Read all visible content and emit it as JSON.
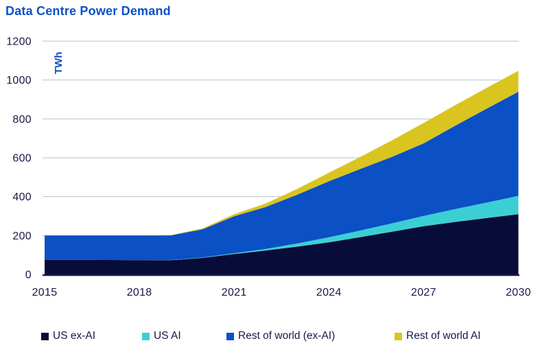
{
  "title": "Data Centre Power Demand",
  "colors": {
    "title": "#0C51C8",
    "axis_text": "#181849",
    "gridline": "#B9C3CE",
    "axis_line": "#1A1A4D",
    "background": "#FFFFFF"
  },
  "chart_data": {
    "type": "area",
    "stacked": true,
    "title": "Data Centre Power Demand",
    "xlabel": "",
    "ylabel": "TWh",
    "x": [
      2015,
      2016,
      2017,
      2018,
      2019,
      2020,
      2021,
      2022,
      2023,
      2024,
      2025,
      2026,
      2027,
      2028,
      2029,
      2030
    ],
    "x_tick_labels": [
      "2015",
      "2018",
      "2021",
      "2024",
      "2027",
      "2030"
    ],
    "x_tick_values": [
      2015,
      2018,
      2021,
      2024,
      2027,
      2030
    ],
    "y_ticks": [
      0,
      200,
      400,
      600,
      800,
      1000,
      1200
    ],
    "ylim": [
      0,
      1200
    ],
    "grid": true,
    "legend_position": "bottom",
    "series": [
      {
        "name": "US ex-AI",
        "color": "#080C38",
        "values": [
          75,
          75,
          74,
          73,
          73,
          85,
          105,
          123,
          143,
          165,
          192,
          220,
          248,
          270,
          290,
          310
        ]
      },
      {
        "name": "US AI",
        "color": "#3BCFD4",
        "values": [
          0,
          0,
          0,
          0,
          1,
          2,
          4,
          8,
          16,
          26,
          34,
          43,
          53,
          66,
          80,
          94
        ]
      },
      {
        "name": "Rest of world (ex-AI)",
        "color": "#0B50C4",
        "values": [
          125,
          125,
          126,
          127,
          127,
          145,
          190,
          216,
          251,
          288,
          317,
          342,
          373,
          429,
          483,
          536
        ]
      },
      {
        "name": "Rest of world AI",
        "color": "#D9C420",
        "values": [
          0,
          0,
          0,
          0,
          1,
          5,
          11,
          18,
          30,
          44,
          62,
          85,
          105,
          106,
          107,
          108
        ]
      }
    ]
  },
  "legend": {
    "item_lefts": [
      60,
      207,
      330,
      575
    ]
  }
}
